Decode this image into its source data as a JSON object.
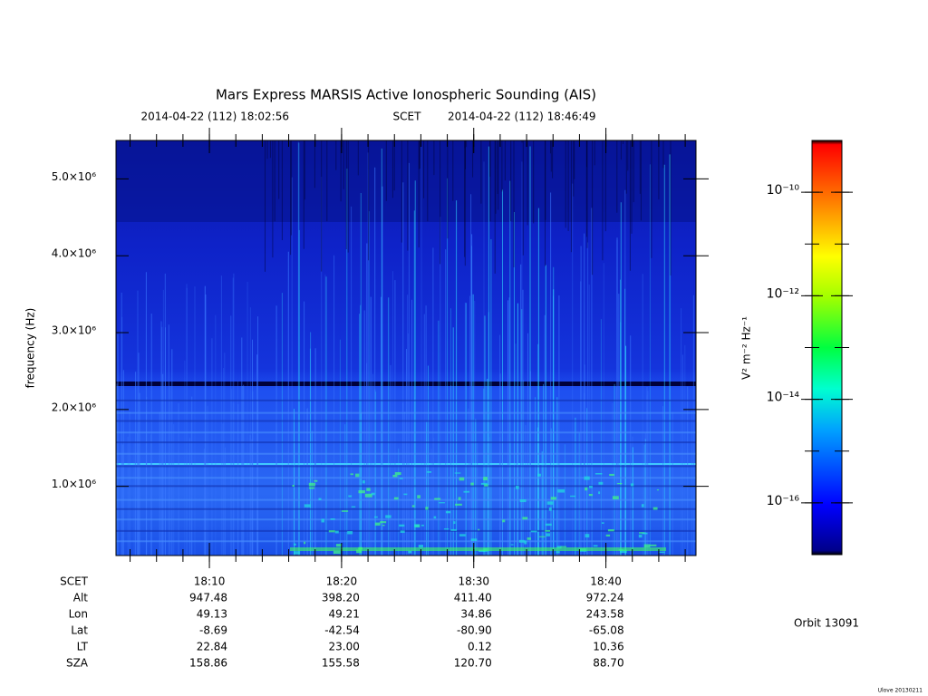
{
  "chart_data": {
    "type": "spectrogram",
    "title": "Mars Express MARSIS Active Ionospheric Sounding (AIS)",
    "start_time": "2014-04-22 (112) 18:02:56",
    "time_system": "SCET",
    "end_time": "2014-04-22 (112) 18:46:49",
    "ylabel": "frequency (Hz)",
    "xlim": [
      "18:02:56",
      "18:46:49"
    ],
    "xticks": [
      "18:10",
      "18:20",
      "18:30",
      "18:40"
    ],
    "ylim": [
      100000,
      5500000
    ],
    "yticks": [
      {
        "value": 1000000,
        "label": "1.0×10⁶"
      },
      {
        "value": 2000000,
        "label": "2.0×10⁶"
      },
      {
        "value": 3000000,
        "label": "3.0×10⁶"
      },
      {
        "value": 4000000,
        "label": "4.0×10⁶"
      },
      {
        "value": 5000000,
        "label": "5.0×10⁶"
      }
    ],
    "colorbar": {
      "label": "V² m⁻² Hz⁻¹",
      "log": true,
      "clim": [
        1e-17,
        1e-09
      ],
      "ticks": [
        {
          "value": 1e-16,
          "label": "10⁻¹⁶"
        },
        {
          "value": 1e-14,
          "label": "10⁻¹⁴"
        },
        {
          "value": 1e-12,
          "label": "10⁻¹²"
        },
        {
          "value": 1e-10,
          "label": "10⁻¹⁰"
        }
      ]
    },
    "ephemeris_labels": [
      "SCET",
      "Alt",
      "Lon",
      "Lat",
      "LT",
      "SZA"
    ],
    "ephemeris": [
      [
        "947.48",
        "398.20",
        "411.40",
        "972.24"
      ],
      [
        "49.13",
        "49.21",
        "34.86",
        "243.58"
      ],
      [
        "-8.69",
        "-42.54",
        "-80.90",
        "-65.08"
      ],
      [
        "22.84",
        "23.00",
        "0.12",
        "10.36"
      ],
      [
        "158.86",
        "155.58",
        "120.70",
        "88.70"
      ]
    ],
    "orbit": "Orbit 13091",
    "footer": "Ulove 20130211"
  }
}
